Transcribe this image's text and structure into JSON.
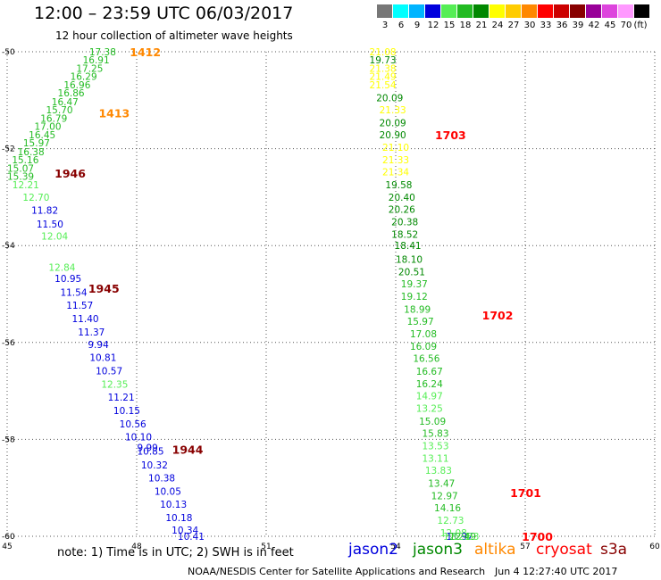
{
  "header": {
    "title": "12:00 – 23:59 UTC 06/03/2017",
    "subtitle": "12 hour collection of altimeter wave heights"
  },
  "legend": {
    "unit": "(ft)",
    "bins": [
      {
        "label": "3",
        "color": "#777777"
      },
      {
        "label": "6",
        "color": "#00ffff"
      },
      {
        "label": "9",
        "color": "#00b4ff"
      },
      {
        "label": "12",
        "color": "#0000dd"
      },
      {
        "label": "15",
        "color": "#55ee55"
      },
      {
        "label": "18",
        "color": "#22bb22"
      },
      {
        "label": "21",
        "color": "#008800"
      },
      {
        "label": "24",
        "color": "#ffff00"
      },
      {
        "label": "27",
        "color": "#ffcc00"
      },
      {
        "label": "30",
        "color": "#ff8800"
      },
      {
        "label": "33",
        "color": "#ff0000"
      },
      {
        "label": "36",
        "color": "#cc0000"
      },
      {
        "label": "39",
        "color": "#880000"
      },
      {
        "label": "42",
        "color": "#990099"
      },
      {
        "label": "45",
        "color": "#dd44dd"
      },
      {
        "label": "70",
        "color": "#ff99ff"
      },
      {
        "label": "",
        "color": "#000000"
      }
    ]
  },
  "map": {
    "lon_range": [
      45,
      60
    ],
    "lat_range": [
      -60,
      -50
    ],
    "lon_ticks": [
      "45",
      "48",
      "51",
      "54",
      "57",
      "60"
    ],
    "lat_ticks": [
      "-50",
      "-52",
      "-54",
      "-56",
      "-58",
      "-60"
    ],
    "grid": true
  },
  "tracks": [
    {
      "lon": 47.84,
      "lat": -50.0,
      "time": "1412",
      "color": "#ff8800"
    },
    {
      "lon": 47.12,
      "lat": -51.26,
      "time": "1413",
      "color": "#ff8800"
    },
    {
      "lon": 54.91,
      "lat": -51.71,
      "time": "1703",
      "color": "#ff0000"
    },
    {
      "lon": 46.1,
      "lat": -52.5,
      "time": "1946",
      "color": "#880000"
    },
    {
      "lon": 46.88,
      "lat": -54.88,
      "time": "1945",
      "color": "#880000"
    },
    {
      "lon": 56.0,
      "lat": -55.43,
      "time": "1702",
      "color": "#ff0000"
    },
    {
      "lon": 48.82,
      "lat": -58.2,
      "time": "1944",
      "color": "#880000"
    },
    {
      "lon": 56.65,
      "lat": -59.1,
      "time": "1701",
      "color": "#ff0000"
    },
    {
      "lon": 56.92,
      "lat": -60.0,
      "time": "1700",
      "color": "#ff0000"
    }
  ],
  "wave_heights": [
    {
      "value": "17.38",
      "lon": 46.9,
      "lat": -50.0,
      "color": "#22bb22"
    },
    {
      "value": "16.91",
      "lon": 46.75,
      "lat": -50.17,
      "color": "#22bb22"
    },
    {
      "value": "17.25",
      "lon": 46.6,
      "lat": -50.34,
      "color": "#22bb22"
    },
    {
      "value": "16.29",
      "lon": 46.46,
      "lat": -50.51,
      "color": "#22bb22"
    },
    {
      "value": "16.96",
      "lon": 46.31,
      "lat": -50.68,
      "color": "#22bb22"
    },
    {
      "value": "16.86",
      "lon": 46.17,
      "lat": -50.85,
      "color": "#22bb22"
    },
    {
      "value": "16.47",
      "lon": 46.03,
      "lat": -51.03,
      "color": "#22bb22"
    },
    {
      "value": "15.70",
      "lon": 45.9,
      "lat": -51.2,
      "color": "#22bb22"
    },
    {
      "value": "16.79",
      "lon": 45.77,
      "lat": -51.37,
      "color": "#22bb22"
    },
    {
      "value": "17.00",
      "lon": 45.63,
      "lat": -51.54,
      "color": "#22bb22"
    },
    {
      "value": "16.45",
      "lon": 45.5,
      "lat": -51.71,
      "color": "#22bb22"
    },
    {
      "value": "15.97",
      "lon": 45.37,
      "lat": -51.88,
      "color": "#22bb22"
    },
    {
      "value": "16.38",
      "lon": 45.24,
      "lat": -52.06,
      "color": "#22bb22"
    },
    {
      "value": "15.16",
      "lon": 45.11,
      "lat": -52.23,
      "color": "#22bb22"
    },
    {
      "value": "15.07",
      "lon": 45.0,
      "lat": -52.4,
      "color": "#22bb22"
    },
    {
      "value": "15.39",
      "lon": 45.0,
      "lat": -52.57,
      "color": "#22bb22"
    },
    {
      "value": "12.21",
      "lon": 45.12,
      "lat": -52.74,
      "color": "#55ee55"
    },
    {
      "value": "12.70",
      "lon": 45.36,
      "lat": -53.0,
      "color": "#55ee55"
    },
    {
      "value": "11.82",
      "lon": 45.56,
      "lat": -53.27,
      "color": "#0000dd"
    },
    {
      "value": "11.50",
      "lon": 45.68,
      "lat": -53.55,
      "color": "#0000dd"
    },
    {
      "value": "12.04",
      "lon": 45.79,
      "lat": -53.8,
      "color": "#55ee55"
    },
    {
      "value": "12.84",
      "lon": 45.96,
      "lat": -54.45,
      "color": "#55ee55"
    },
    {
      "value": "10.95",
      "lon": 46.1,
      "lat": -54.68,
      "color": "#0000dd"
    },
    {
      "value": "11.54",
      "lon": 46.23,
      "lat": -54.96,
      "color": "#0000dd"
    },
    {
      "value": "11.57",
      "lon": 46.37,
      "lat": -55.23,
      "color": "#0000dd"
    },
    {
      "value": "11.40",
      "lon": 46.5,
      "lat": -55.51,
      "color": "#0000dd"
    },
    {
      "value": "11.37",
      "lon": 46.64,
      "lat": -55.78,
      "color": "#0000dd"
    },
    {
      "value": "9.94",
      "lon": 46.87,
      "lat": -56.04,
      "color": "#0000dd"
    },
    {
      "value": "10.81",
      "lon": 46.91,
      "lat": -56.31,
      "color": "#0000dd"
    },
    {
      "value": "10.57",
      "lon": 47.05,
      "lat": -56.58,
      "color": "#0000dd"
    },
    {
      "value": "12.35",
      "lon": 47.18,
      "lat": -56.86,
      "color": "#55ee55"
    },
    {
      "value": "11.21",
      "lon": 47.33,
      "lat": -57.13,
      "color": "#0000dd"
    },
    {
      "value": "10.15",
      "lon": 47.46,
      "lat": -57.4,
      "color": "#0000dd"
    },
    {
      "value": "10.56",
      "lon": 47.6,
      "lat": -57.68,
      "color": "#0000dd"
    },
    {
      "value": "10.10",
      "lon": 47.73,
      "lat": -57.95,
      "color": "#0000dd"
    },
    {
      "value": "9.99",
      "lon": 48.01,
      "lat": -58.17,
      "color": "#0000dd"
    },
    {
      "value": "10.85",
      "lon": 48.01,
      "lat": -58.24,
      "color": "#0000dd"
    },
    {
      "value": "10.32",
      "lon": 48.1,
      "lat": -58.53,
      "color": "#0000dd"
    },
    {
      "value": "10.38",
      "lon": 48.27,
      "lat": -58.79,
      "color": "#0000dd"
    },
    {
      "value": "10.05",
      "lon": 48.41,
      "lat": -59.07,
      "color": "#0000dd"
    },
    {
      "value": "10.13",
      "lon": 48.54,
      "lat": -59.34,
      "color": "#0000dd"
    },
    {
      "value": "10.18",
      "lon": 48.67,
      "lat": -59.61,
      "color": "#0000dd"
    },
    {
      "value": "10.34",
      "lon": 48.81,
      "lat": -59.87,
      "color": "#0000dd"
    },
    {
      "value": "10.41",
      "lon": 48.95,
      "lat": -60.0,
      "color": "#0000dd"
    },
    {
      "value": "21.08",
      "lon": 53.39,
      "lat": -50.0,
      "color": "#ffff00"
    },
    {
      "value": "19.73",
      "lon": 53.39,
      "lat": -50.17,
      "color": "#008800"
    },
    {
      "value": "21.38",
      "lon": 53.39,
      "lat": -50.34,
      "color": "#ffff00"
    },
    {
      "value": "21.49",
      "lon": 53.39,
      "lat": -50.51,
      "color": "#ffff00"
    },
    {
      "value": "21.54",
      "lon": 53.39,
      "lat": -50.68,
      "color": "#ffff00"
    },
    {
      "value": "20.09",
      "lon": 53.55,
      "lat": -50.95,
      "color": "#008800"
    },
    {
      "value": "21.33",
      "lon": 53.62,
      "lat": -51.2,
      "color": "#ffff00"
    },
    {
      "value": "20.09",
      "lon": 53.62,
      "lat": -51.46,
      "color": "#008800"
    },
    {
      "value": "20.90",
      "lon": 53.62,
      "lat": -51.71,
      "color": "#008800"
    },
    {
      "value": "21.10",
      "lon": 53.69,
      "lat": -51.97,
      "color": "#ffff00"
    },
    {
      "value": "21.33",
      "lon": 53.69,
      "lat": -52.23,
      "color": "#ffff00"
    },
    {
      "value": "21.34",
      "lon": 53.69,
      "lat": -52.48,
      "color": "#ffff00"
    },
    {
      "value": "19.58",
      "lon": 53.76,
      "lat": -52.74,
      "color": "#008800"
    },
    {
      "value": "20.40",
      "lon": 53.83,
      "lat": -53.0,
      "color": "#008800"
    },
    {
      "value": "20.26",
      "lon": 53.83,
      "lat": -53.25,
      "color": "#008800"
    },
    {
      "value": "20.38",
      "lon": 53.9,
      "lat": -53.51,
      "color": "#008800"
    },
    {
      "value": "18.52",
      "lon": 53.9,
      "lat": -53.77,
      "color": "#008800"
    },
    {
      "value": "18.41",
      "lon": 53.97,
      "lat": -54.0,
      "color": "#008800"
    },
    {
      "value": "18.10",
      "lon": 54.0,
      "lat": -54.28,
      "color": "#008800"
    },
    {
      "value": "20.51",
      "lon": 54.06,
      "lat": -54.54,
      "color": "#008800"
    },
    {
      "value": "19.37",
      "lon": 54.12,
      "lat": -54.79,
      "color": "#22bb22"
    },
    {
      "value": "19.12",
      "lon": 54.12,
      "lat": -55.05,
      "color": "#22bb22"
    },
    {
      "value": "18.99",
      "lon": 54.19,
      "lat": -55.31,
      "color": "#22bb22"
    },
    {
      "value": "15.97",
      "lon": 54.26,
      "lat": -55.56,
      "color": "#22bb22"
    },
    {
      "value": "17.08",
      "lon": 54.33,
      "lat": -55.82,
      "color": "#22bb22"
    },
    {
      "value": "16.09",
      "lon": 54.33,
      "lat": -56.08,
      "color": "#22bb22"
    },
    {
      "value": "16.56",
      "lon": 54.4,
      "lat": -56.33,
      "color": "#22bb22"
    },
    {
      "value": "16.67",
      "lon": 54.47,
      "lat": -56.59,
      "color": "#22bb22"
    },
    {
      "value": "16.24",
      "lon": 54.47,
      "lat": -56.85,
      "color": "#22bb22"
    },
    {
      "value": "14.97",
      "lon": 54.47,
      "lat": -57.1,
      "color": "#55ee55"
    },
    {
      "value": "13.25",
      "lon": 54.47,
      "lat": -57.36,
      "color": "#55ee55"
    },
    {
      "value": "15.09",
      "lon": 54.54,
      "lat": -57.62,
      "color": "#22bb22"
    },
    {
      "value": "15.83",
      "lon": 54.61,
      "lat": -57.87,
      "color": "#22bb22"
    },
    {
      "value": "13.53",
      "lon": 54.61,
      "lat": -58.13,
      "color": "#55ee55"
    },
    {
      "value": "13.11",
      "lon": 54.61,
      "lat": -58.39,
      "color": "#55ee55"
    },
    {
      "value": "13.83",
      "lon": 54.68,
      "lat": -58.64,
      "color": "#55ee55"
    },
    {
      "value": "13.47",
      "lon": 54.75,
      "lat": -58.9,
      "color": "#22bb22"
    },
    {
      "value": "12.97",
      "lon": 54.82,
      "lat": -59.16,
      "color": "#22bb22"
    },
    {
      "value": "14.16",
      "lon": 54.89,
      "lat": -59.41,
      "color": "#22bb22"
    },
    {
      "value": "12.73",
      "lon": 54.96,
      "lat": -59.67,
      "color": "#55ee55"
    },
    {
      "value": "12.08",
      "lon": 55.03,
      "lat": -59.93,
      "color": "#55ee55"
    },
    {
      "value": "12.21",
      "lon": 55.1,
      "lat": -60.0,
      "color": "#55ee55"
    },
    {
      "value": "11.97",
      "lon": 55.17,
      "lat": -60.0,
      "color": "#0000dd"
    },
    {
      "value": "12.49",
      "lon": 55.24,
      "lat": -60.0,
      "color": "#22bb22"
    },
    {
      "value": "12.83",
      "lon": 55.31,
      "lat": -60.0,
      "color": "#55ee55"
    }
  ],
  "footer": {
    "note": "note: 1) Time is in UTC; 2) SWH is in feet",
    "satellites": [
      {
        "name": "jason2",
        "color": "#0000dd"
      },
      {
        "name": "jason3",
        "color": "#008800"
      },
      {
        "name": "altika",
        "color": "#ff8800"
      },
      {
        "name": "cryosat",
        "color": "#ff0000"
      },
      {
        "name": "s3a",
        "color": "#880000"
      }
    ],
    "credit": "NOAA/NESDIS Center for Satellite Applications and Research",
    "timestamp": "Jun  4 12:27:40 UTC 2017"
  }
}
